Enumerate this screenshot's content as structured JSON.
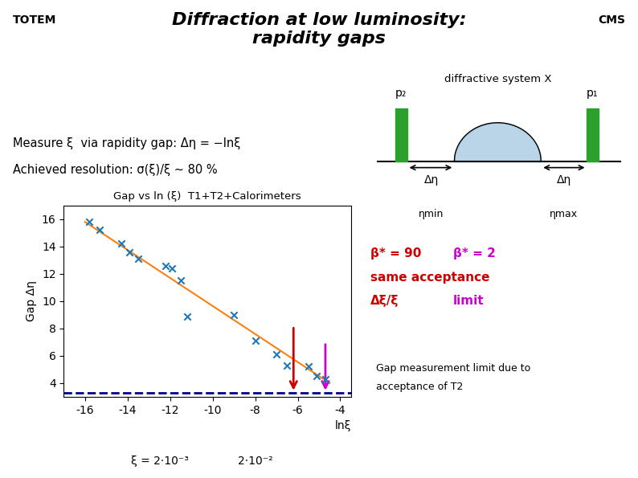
{
  "chart_data": {
    "type": "scatter",
    "title": "Diffraction at low luminosity:\nrapidity gaps",
    "subtitle": "Gap vs ln (ξ)  T1+T2+Calorimeters",
    "x_label": "lnξ",
    "y_label": "Gap Δη",
    "xlim": [
      -17,
      -3.5
    ],
    "ylim": [
      3.0,
      17.0
    ],
    "xticks": [
      -16,
      -14,
      -12,
      -10,
      -8,
      -6,
      -4
    ],
    "yticks": [
      4,
      6,
      8,
      10,
      12,
      14,
      16
    ],
    "grid": false,
    "series": [
      {
        "type": "scatter",
        "marker": "x",
        "x": [
          -15.8,
          -15.3,
          -14.3,
          -13.9,
          -13.5,
          -12.2,
          -11.9,
          -11.5,
          -11.2,
          -9.0,
          -8.0,
          -7.0,
          -6.5,
          -5.5,
          -5.1,
          -4.7
        ],
        "values": [
          15.8,
          15.2,
          14.2,
          13.6,
          13.1,
          12.6,
          12.4,
          11.5,
          8.9,
          9.0,
          7.1,
          6.1,
          5.3,
          5.2,
          4.5,
          4.3
        ]
      },
      {
        "type": "line",
        "line_style": "solid",
        "x": [
          -16.0,
          -4.5
        ],
        "values": [
          15.8,
          4.0
        ]
      },
      {
        "type": "hline",
        "line_style": "dashed",
        "color": "#00008b",
        "values": [
          3.3
        ]
      },
      {
        "type": "arrow",
        "color": "#cc0000",
        "x": [
          -6.2,
          -6.2
        ],
        "values": [
          8.2,
          3.3
        ]
      },
      {
        "type": "arrow",
        "color": "#cc00cc",
        "x": [
          -4.7,
          -4.7
        ],
        "values": [
          7.0,
          3.3
        ]
      }
    ],
    "annotations": {
      "logo_left": "TOTEM",
      "logo_right": "CMS",
      "measure": "Measure ξ  via rapidity gap: Δη = −lnξ",
      "achieved": "Achieved resolution: σ(ξ)/ξ ~ 80 %",
      "beta_90": "β* = 90",
      "beta_2": "β* = 2",
      "same": "same acceptance",
      "dxi": "Δξ/ξ",
      "limit": "limit",
      "gap1": "Gap measurement limit due to",
      "gap2": "acceptance of T2",
      "xi_low": "ξ = 2·10⁻³",
      "xi_high": "2·10⁻²",
      "diagram_title": "diffractive system X",
      "p2": "p₂",
      "p1": "p₁",
      "delta_eta": "Δη",
      "eta_min": "ηmin",
      "eta_max": "ηmax"
    }
  }
}
